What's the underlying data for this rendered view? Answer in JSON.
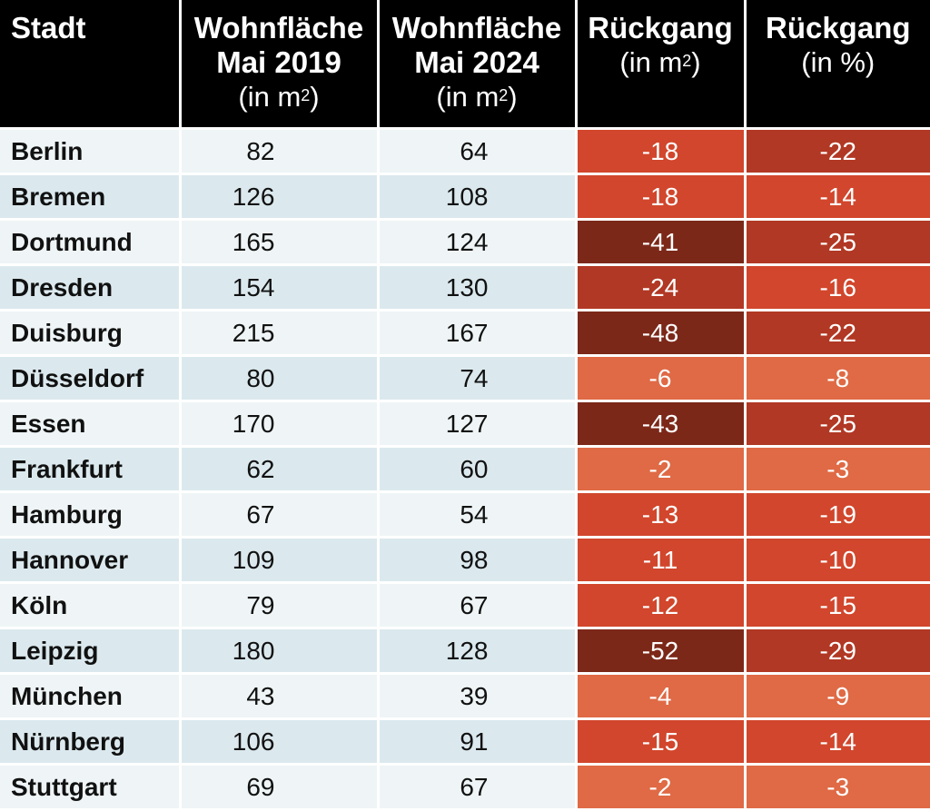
{
  "headers": {
    "city": "Stadt",
    "area2019": {
      "line1": "Wohnfläche",
      "line2": "Mai 2019",
      "unit_base": "(in m",
      "unit_sup": "2",
      "unit_end": ")"
    },
    "area2024": {
      "line1": "Wohnfläche",
      "line2": "Mai 2024",
      "unit_base": "(in m",
      "unit_sup": "2",
      "unit_end": ")"
    },
    "decline_m2": {
      "line1": "Rückgang",
      "unit_base": "(in m",
      "unit_sup": "2",
      "unit_end": ")"
    },
    "decline_pct": {
      "line1": "Rückgang",
      "unit_text": "(in %)"
    }
  },
  "colors": {
    "header_bg": "#000000",
    "row_light": "#eff5f6",
    "row_dark": "#dbe9ee",
    "decline_level_1": "#df6a45",
    "decline_level_2": "#d1462c",
    "decline_level_3": "#b13824",
    "decline_level_4": "#7c2819"
  },
  "chart_data": {
    "type": "table",
    "columns": [
      "Stadt",
      "Wohnfläche Mai 2019 (in m²)",
      "Wohnfläche Mai 2024 (in m²)",
      "Rückgang (in m²)",
      "Rückgang (in %)"
    ],
    "rows": [
      {
        "city": "Berlin",
        "area2019": "82",
        "area2024": "64",
        "decline_m2": "-18",
        "decline_pct": "-22",
        "lvl_m2": 2,
        "lvl_pct": 3
      },
      {
        "city": "Bremen",
        "area2019": "126",
        "area2024": "108",
        "decline_m2": "-18",
        "decline_pct": "-14",
        "lvl_m2": 2,
        "lvl_pct": 2
      },
      {
        "city": "Dortmund",
        "area2019": "165",
        "area2024": "124",
        "decline_m2": "-41",
        "decline_pct": "-25",
        "lvl_m2": 4,
        "lvl_pct": 3
      },
      {
        "city": "Dresden",
        "area2019": "154",
        "area2024": "130",
        "decline_m2": "-24",
        "decline_pct": "-16",
        "lvl_m2": 3,
        "lvl_pct": 2
      },
      {
        "city": "Duisburg",
        "area2019": "215",
        "area2024": "167",
        "decline_m2": "-48",
        "decline_pct": "-22",
        "lvl_m2": 4,
        "lvl_pct": 3
      },
      {
        "city": "Düsseldorf",
        "area2019": "80",
        "area2024": "74",
        "decline_m2": "-6",
        "decline_pct": "-8",
        "lvl_m2": 1,
        "lvl_pct": 1
      },
      {
        "city": "Essen",
        "area2019": "170",
        "area2024": "127",
        "decline_m2": "-43",
        "decline_pct": "-25",
        "lvl_m2": 4,
        "lvl_pct": 3
      },
      {
        "city": "Frankfurt",
        "area2019": "62",
        "area2024": "60",
        "decline_m2": "-2",
        "decline_pct": "-3",
        "lvl_m2": 1,
        "lvl_pct": 1
      },
      {
        "city": "Hamburg",
        "area2019": "67",
        "area2024": "54",
        "decline_m2": "-13",
        "decline_pct": "-19",
        "lvl_m2": 2,
        "lvl_pct": 2
      },
      {
        "city": "Hannover",
        "area2019": "109",
        "area2024": "98",
        "decline_m2": "-11",
        "decline_pct": "-10",
        "lvl_m2": 2,
        "lvl_pct": 2
      },
      {
        "city": "Köln",
        "area2019": "79",
        "area2024": "67",
        "decline_m2": "-12",
        "decline_pct": "-15",
        "lvl_m2": 2,
        "lvl_pct": 2
      },
      {
        "city": "Leipzig",
        "area2019": "180",
        "area2024": "128",
        "decline_m2": "-52",
        "decline_pct": "-29",
        "lvl_m2": 4,
        "lvl_pct": 3
      },
      {
        "city": "München",
        "area2019": "43",
        "area2024": "39",
        "decline_m2": "-4",
        "decline_pct": "-9",
        "lvl_m2": 1,
        "lvl_pct": 1
      },
      {
        "city": "Nürnberg",
        "area2019": "106",
        "area2024": "91",
        "decline_m2": "-15",
        "decline_pct": "-14",
        "lvl_m2": 2,
        "lvl_pct": 2
      },
      {
        "city": "Stuttgart",
        "area2019": "69",
        "area2024": "67",
        "decline_m2": "-2",
        "decline_pct": "-3",
        "lvl_m2": 1,
        "lvl_pct": 1
      }
    ]
  }
}
